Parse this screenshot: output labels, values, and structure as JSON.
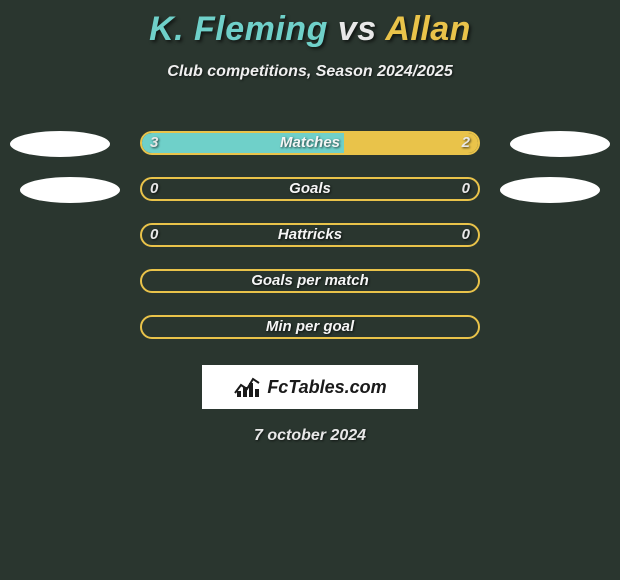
{
  "title": {
    "player_a": "K. Fleming",
    "vs": " vs ",
    "player_b": "Allan",
    "color_a": "#6fd0c9",
    "color_b": "#e9c34a"
  },
  "subtitle": "Club competitions, Season 2024/2025",
  "background_color": "#2a362f",
  "stats": [
    {
      "label": "Matches",
      "a": "3",
      "b": "2",
      "a_pct": 60,
      "b_pct": 40,
      "show_chips": true,
      "chip_row": 1
    },
    {
      "label": "Goals",
      "a": "0",
      "b": "0",
      "a_pct": 0,
      "b_pct": 0,
      "show_chips": true,
      "chip_row": 2
    },
    {
      "label": "Hattricks",
      "a": "0",
      "b": "0",
      "a_pct": 0,
      "b_pct": 0,
      "show_chips": false,
      "chip_row": 0
    },
    {
      "label": "Goals per match",
      "a": "",
      "b": "",
      "a_pct": 0,
      "b_pct": 0,
      "show_chips": false,
      "chip_row": 0
    },
    {
      "label": "Min per goal",
      "a": "",
      "b": "",
      "a_pct": 0,
      "b_pct": 0,
      "show_chips": false,
      "chip_row": 0
    }
  ],
  "bar_style": {
    "fill_a": "#6fd0c9",
    "fill_b": "#e9c34a",
    "border": "#e9c34a",
    "empty_bg": "#2a362f"
  },
  "logo_text": "FcTables.com",
  "date": "7 october 2024"
}
